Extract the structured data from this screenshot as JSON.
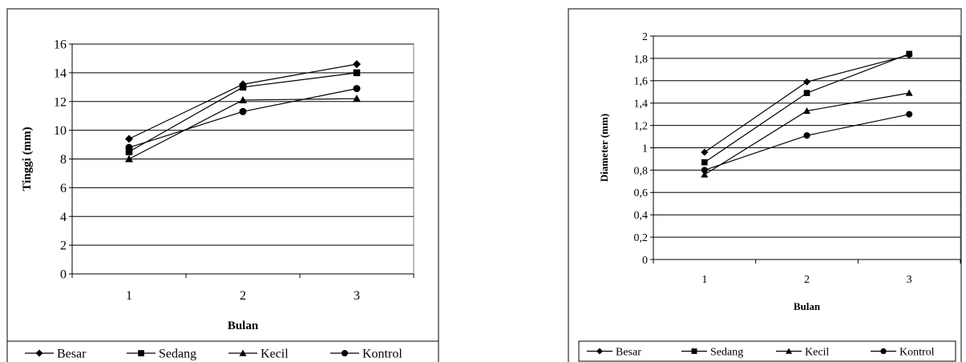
{
  "chart_data": [
    {
      "type": "line",
      "title": "",
      "xlabel": "Bulan",
      "ylabel": "Tinggi (mm)",
      "x": [
        "1",
        "2",
        "3"
      ],
      "ylim": [
        0,
        16
      ],
      "yticks": [
        "0",
        "2",
        "4",
        "6",
        "8",
        "10",
        "12",
        "14",
        "16"
      ],
      "grid": true,
      "legend_position": "bottom",
      "series": [
        {
          "name": "Besar",
          "marker": "diamond",
          "values": [
            9.4,
            13.2,
            14.6
          ]
        },
        {
          "name": "Sedang",
          "marker": "square",
          "values": [
            8.5,
            13.0,
            14.0
          ]
        },
        {
          "name": "Kecil",
          "marker": "triangle",
          "values": [
            8.0,
            12.1,
            12.2
          ]
        },
        {
          "name": "Kontrol",
          "marker": "circle",
          "values": [
            8.8,
            11.3,
            12.9
          ]
        }
      ]
    },
    {
      "type": "line",
      "title": "",
      "xlabel": "Bulan",
      "ylabel": "Diameter (mm)",
      "x": [
        "1",
        "2",
        "3"
      ],
      "ylim": [
        0,
        2
      ],
      "yticks": [
        "0",
        "0,2",
        "0,4",
        "0,6",
        "0,8",
        "1",
        "1,2",
        "1,4",
        "1,6",
        "1,8",
        "2"
      ],
      "grid": true,
      "legend_position": "bottom",
      "series": [
        {
          "name": "Besar",
          "marker": "diamond",
          "values": [
            0.96,
            1.59,
            1.83
          ]
        },
        {
          "name": "Sedang",
          "marker": "square",
          "values": [
            0.87,
            1.49,
            1.84
          ]
        },
        {
          "name": "Kecil",
          "marker": "triangle",
          "values": [
            0.76,
            1.33,
            1.49
          ]
        },
        {
          "name": "Kontrol",
          "marker": "circle",
          "values": [
            0.8,
            1.11,
            1.3
          ]
        }
      ]
    }
  ]
}
